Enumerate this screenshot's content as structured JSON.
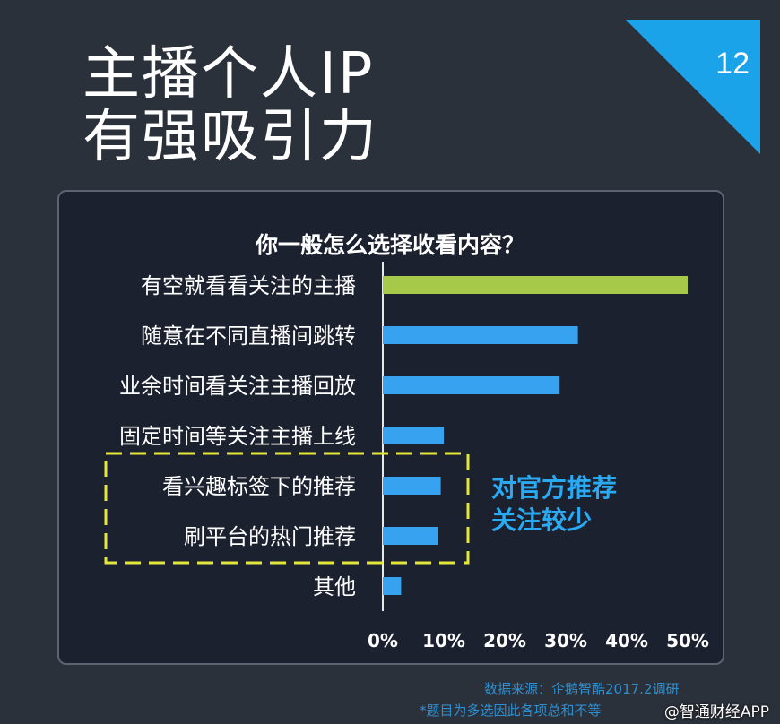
{
  "slide": {
    "title_line1": "主播个人IP",
    "title_line2": "有强吸引力",
    "page_number": "12",
    "corner_color": "#1aa3e8"
  },
  "chart_data": {
    "type": "bar",
    "orientation": "horizontal",
    "title": "你一般怎么选择收看内容？",
    "categories": [
      "有空就看看关注的主播",
      "随意在不同直播间跳转",
      "业余时间看关注主播回放",
      "固定时间等关注主播上线",
      "看兴趣标签下的推荐",
      "刷平台的热门推荐",
      "其他"
    ],
    "values": [
      50,
      32,
      29,
      10,
      9.5,
      9,
      3
    ],
    "unit": "%",
    "xlim": [
      0,
      50
    ],
    "x_ticks": [
      "0%",
      "10%",
      "20%",
      "30%",
      "40%",
      "50%"
    ],
    "colors": [
      "#a6c94a",
      "#37a3f0",
      "#37a3f0",
      "#37a3f0",
      "#37a3f0",
      "#37a3f0",
      "#37a3f0"
    ],
    "highlight": {
      "categories": [
        "看兴趣标签下的推荐",
        "刷平台的热门推荐"
      ],
      "border_color": "#e4e63a",
      "style": "dashed"
    },
    "annotation_line1": "对官方推荐",
    "annotation_line2": "关注较少"
  },
  "footer": {
    "source": "数据来源：企鹅智酷2017.2调研",
    "note": "*题目为多选因此各项总和不等",
    "watermark": "@智通财经APP"
  }
}
